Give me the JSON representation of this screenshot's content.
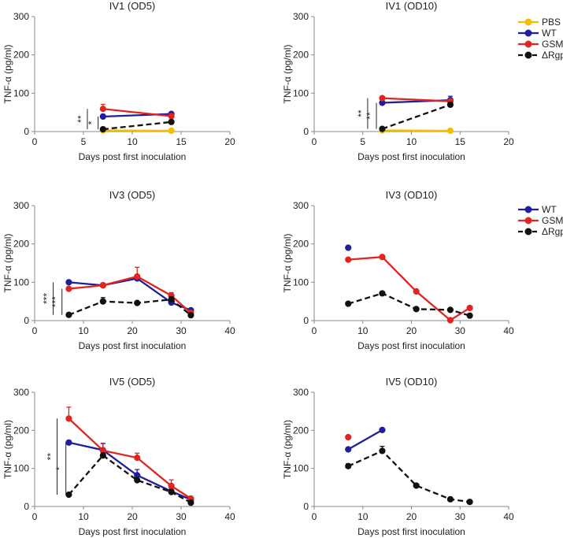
{
  "chart_data": [
    {
      "id": "iv1-od5",
      "type": "line",
      "title": "IV1 (OD5)",
      "xlabel": "Days post first inoculation",
      "ylabel": "TNF-α (pg/ml)",
      "xlim": [
        0,
        20
      ],
      "ylim": [
        0,
        300
      ],
      "xticks": [
        "0",
        "5",
        "10",
        "15",
        "20"
      ],
      "yticks": [
        "0",
        "100",
        "200",
        "300"
      ],
      "series": [
        {
          "name": "PBS",
          "style": "solid",
          "color": "#F5BC00",
          "x": [
            7,
            14
          ],
          "y": [
            3,
            2
          ],
          "err": [
            0,
            0
          ]
        },
        {
          "name": "WT",
          "style": "solid",
          "color": "#1F1F9C",
          "x": [
            7,
            14
          ],
          "y": [
            39,
            46
          ],
          "err": [
            6,
            4
          ]
        },
        {
          "name": "GSM",
          "style": "solid",
          "color": "#E22421",
          "x": [
            7,
            14
          ],
          "y": [
            59,
            40
          ],
          "err": [
            12,
            5
          ]
        },
        {
          "name": "ΔRgpI",
          "style": "dashed",
          "color": "#111111",
          "x": [
            7,
            14
          ],
          "y": [
            6,
            25
          ],
          "err": [
            0,
            5
          ]
        }
      ],
      "annotations": [
        {
          "label": "**",
          "x": 5.4,
          "y_from": 6,
          "y_to": 59
        },
        {
          "label": "*",
          "x": 6.5,
          "y_from": 6,
          "y_to": 39
        }
      ]
    },
    {
      "id": "iv1-od10",
      "type": "line",
      "title": "IV1 (OD10)",
      "xlabel": "Days post first inoculation",
      "ylabel": "TNF-α (pg/ml)",
      "xlim": [
        0,
        20
      ],
      "ylim": [
        0,
        300
      ],
      "xticks": [
        "0",
        "5",
        "10",
        "15",
        "20"
      ],
      "yticks": [
        "0",
        "100",
        "200",
        "300"
      ],
      "series": [
        {
          "name": "PBS",
          "style": "solid",
          "color": "#F5BC00",
          "x": [
            7,
            14
          ],
          "y": [
            3,
            2
          ],
          "err": [
            0,
            0
          ]
        },
        {
          "name": "WT",
          "style": "solid",
          "color": "#1F1F9C",
          "x": [
            7,
            14
          ],
          "y": [
            75,
            82
          ],
          "err": [
            4,
            10
          ]
        },
        {
          "name": "GSM",
          "style": "solid",
          "color": "#E22421",
          "x": [
            7,
            14
          ],
          "y": [
            87,
            79
          ],
          "err": [
            3,
            6
          ]
        },
        {
          "name": "ΔRgpI",
          "style": "dashed",
          "color": "#111111",
          "x": [
            7,
            14
          ],
          "y": [
            7,
            70
          ],
          "err": [
            0,
            6
          ]
        }
      ],
      "annotations": [
        {
          "label": "**",
          "x": 5.5,
          "y_from": 7,
          "y_to": 87
        },
        {
          "label": "**",
          "x": 6.4,
          "y_from": 7,
          "y_to": 75
        }
      ],
      "legend": [
        "PBS",
        "WT",
        "GSM",
        "ΔRgpI"
      ]
    },
    {
      "id": "iv3-od5",
      "type": "line",
      "title": "IV3 (OD5)",
      "xlabel": "Days post first inoculation",
      "ylabel": "TNF-α (pg/ml)",
      "xlim": [
        0,
        40
      ],
      "ylim": [
        0,
        300
      ],
      "xticks": [
        "0",
        "10",
        "20",
        "30",
        "40"
      ],
      "yticks": [
        "0",
        "100",
        "200",
        "300"
      ],
      "series": [
        {
          "name": "WT",
          "style": "solid",
          "color": "#1F1F9C",
          "x": [
            7,
            14,
            21,
            28,
            32
          ],
          "y": [
            100,
            92,
            110,
            47,
            27
          ],
          "err": [
            4,
            5,
            8,
            8,
            3
          ]
        },
        {
          "name": "GSM",
          "style": "solid",
          "color": "#E22421",
          "x": [
            7,
            14,
            21,
            28,
            32
          ],
          "y": [
            83,
            92,
            115,
            65,
            20
          ],
          "err": [
            4,
            6,
            24,
            8,
            3
          ]
        },
        {
          "name": "ΔRgpI",
          "style": "dashed",
          "color": "#111111",
          "x": [
            7,
            14,
            21,
            28,
            32
          ],
          "y": [
            15,
            50,
            46,
            55,
            14
          ],
          "err": [
            3,
            10,
            4,
            7,
            3
          ]
        }
      ],
      "annotations": [
        {
          "label": "***",
          "x": 3.8,
          "y_from": 15,
          "y_to": 100
        },
        {
          "label": "***",
          "x": 5.6,
          "y_from": 15,
          "y_to": 83
        }
      ]
    },
    {
      "id": "iv3-od10",
      "type": "line",
      "title": "IV3 (OD10)",
      "xlabel": "Days post first inoculation",
      "ylabel": "TNF-α (pg/ml)",
      "xlim": [
        0,
        40
      ],
      "ylim": [
        0,
        300
      ],
      "xticks": [
        "0",
        "10",
        "20",
        "30",
        "40"
      ],
      "yticks": [
        "0",
        "100",
        "200",
        "300"
      ],
      "series": [
        {
          "name": "WT",
          "style": "solid",
          "color": "#1F1F9C",
          "x": [
            7
          ],
          "y": [
            190
          ],
          "err": [
            0
          ]
        },
        {
          "name": "GSM",
          "style": "solid",
          "color": "#E22421",
          "x": [
            7,
            14,
            21,
            28,
            32
          ],
          "y": [
            159,
            166,
            76,
            1,
            33
          ],
          "err": [
            0,
            0,
            0,
            0,
            0
          ]
        },
        {
          "name": "ΔRgpI",
          "style": "dashed",
          "color": "#111111",
          "x": [
            7,
            14,
            21,
            28,
            32
          ],
          "y": [
            44,
            71,
            30,
            28,
            13
          ],
          "err": [
            0,
            0,
            0,
            0,
            0
          ]
        }
      ],
      "annotations": [],
      "legend": [
        "WT",
        "GSM",
        "ΔRgpI"
      ]
    },
    {
      "id": "iv5-od5",
      "type": "line",
      "title": "IV5 (OD5)",
      "xlabel": "Days post first inoculation",
      "ylabel": "TNF-α (pg/ml)",
      "xlim": [
        0,
        40
      ],
      "ylim": [
        0,
        300
      ],
      "xticks": [
        "0",
        "10",
        "20",
        "30",
        "40"
      ],
      "yticks": [
        "0",
        "100",
        "200",
        "300"
      ],
      "series": [
        {
          "name": "WT",
          "style": "solid",
          "color": "#1F1F9C",
          "x": [
            7,
            14,
            21,
            28,
            32
          ],
          "y": [
            168,
            148,
            82,
            40,
            18
          ],
          "err": [
            5,
            18,
            15,
            8,
            3
          ]
        },
        {
          "name": "GSM",
          "style": "solid",
          "color": "#E22421",
          "x": [
            7,
            14,
            21,
            28,
            32
          ],
          "y": [
            231,
            147,
            128,
            54,
            21
          ],
          "err": [
            30,
            18,
            12,
            16,
            3
          ]
        },
        {
          "name": "ΔRgpI",
          "style": "dashed",
          "color": "#111111",
          "x": [
            7,
            14,
            21,
            28,
            32
          ],
          "y": [
            31,
            134,
            69,
            38,
            10
          ],
          "err": [
            0,
            6,
            4,
            5,
            3
          ]
        }
      ],
      "annotations": [
        {
          "label": "**",
          "x": 4.6,
          "y_from": 31,
          "y_to": 231
        },
        {
          "label": "*",
          "x": 6.4,
          "y_from": 31,
          "y_to": 168
        }
      ]
    },
    {
      "id": "iv5-od10",
      "type": "line",
      "title": "IV5 (OD10)",
      "xlabel": "Days post first inoculation",
      "ylabel": "TNF-α (pg/ml)",
      "xlim": [
        0,
        40
      ],
      "ylim": [
        0,
        300
      ],
      "xticks": [
        "0",
        "10",
        "20",
        "30",
        "40"
      ],
      "yticks": [
        "0",
        "100",
        "200",
        "300"
      ],
      "series": [
        {
          "name": "WT",
          "style": "solid",
          "color": "#1F1F9C",
          "x": [
            7,
            14
          ],
          "y": [
            150,
            201
          ],
          "err": [
            0,
            0
          ]
        },
        {
          "name": "GSM",
          "style": "solid",
          "color": "#E22421",
          "x": [
            7
          ],
          "y": [
            182
          ],
          "err": [
            0
          ]
        },
        {
          "name": "ΔRgpI",
          "style": "dashed",
          "color": "#111111",
          "x": [
            7,
            14,
            21,
            28,
            32
          ],
          "y": [
            106,
            146,
            55,
            19,
            12
          ],
          "err": [
            6,
            12,
            0,
            0,
            0
          ]
        }
      ],
      "annotations": []
    }
  ]
}
